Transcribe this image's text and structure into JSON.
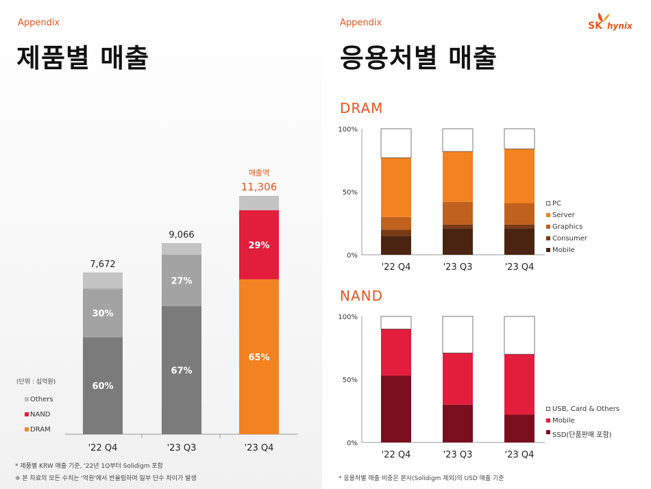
{
  "left": {
    "appendix": "Appendix",
    "title": "제품별 매출",
    "unit_note": "(단위 : 십억원)",
    "legend": [
      {
        "label": "Others",
        "color": "#bdbdbd"
      },
      {
        "label": "NAND",
        "color": "#e31d3c"
      },
      {
        "label": "DRAM",
        "color": "#f58220"
      }
    ],
    "footnotes": [
      "* 제품별 KRW 매출 기준, '22년 1Q부터 Solidigm 포함",
      "※ 본 자료의 모든 수치는 '억원'에서 반올림하여 일부 단수 차이가 발생"
    ],
    "revenue_label": "매출액"
  },
  "right": {
    "appendix": "Appendix",
    "title": "응용처별 매출",
    "dram_title": "DRAM",
    "nand_title": "NAND",
    "footnote": "* 응용처별 매출 비중은 본사(Solidigm 제외)의 USD 매출 기준",
    "dram_legend": [
      {
        "label": "PC",
        "color": "#ffffff"
      },
      {
        "label": "Server",
        "color": "#f58220"
      },
      {
        "label": "Graphics",
        "color": "#c0621e"
      },
      {
        "label": "Consumer",
        "color": "#7a3a14"
      },
      {
        "label": "Mobile",
        "color": "#4a2410"
      }
    ],
    "nand_legend": [
      {
        "label": "USB, Card & Others",
        "color": "#ffffff"
      },
      {
        "label": "Mobile",
        "color": "#e31d3c"
      },
      {
        "label": "SSD(단품판매 포함)",
        "color": "#7a0e1e"
      }
    ]
  },
  "logo": {
    "brand": "SK",
    "sub": "hynix"
  },
  "chart_data": [
    {
      "type": "bar",
      "title": "제품별 매출",
      "categories": [
        "'22 Q4",
        "'23 Q3",
        "'23 Q4"
      ],
      "totals": [
        "7,672",
        "9,066",
        "11,306"
      ],
      "totals_values": [
        7672,
        9066,
        11306
      ],
      "series": [
        {
          "name": "DRAM",
          "values": [
            60,
            67,
            65
          ],
          "labels": [
            "60%",
            "67%",
            "65%"
          ],
          "colors": [
            "#7b7b7b",
            "#7b7b7b",
            "#f58220"
          ]
        },
        {
          "name": "NAND",
          "values": [
            30,
            27,
            29
          ],
          "labels": [
            "30%",
            "27%",
            "29%"
          ],
          "colors": [
            "#a3a3a3",
            "#a3a3a3",
            "#e31d3c"
          ]
        },
        {
          "name": "Others",
          "values": [
            10,
            6,
            6
          ],
          "labels": [
            "",
            "",
            ""
          ],
          "colors": [
            "#c4c4c4",
            "#c4c4c4",
            "#c4c4c4"
          ]
        }
      ]
    },
    {
      "type": "bar",
      "title": "DRAM",
      "categories": [
        "'22 Q4",
        "'23 Q3",
        "'23 Q4"
      ],
      "yticks": [
        "0%",
        "50%",
        "100%"
      ],
      "ylim": [
        0,
        100
      ],
      "series": [
        {
          "name": "Mobile",
          "values": [
            15,
            21,
            21
          ],
          "color": "#4a2410"
        },
        {
          "name": "Consumer",
          "values": [
            5,
            3,
            3
          ],
          "color": "#7a3a14"
        },
        {
          "name": "Graphics",
          "values": [
            10,
            18,
            17
          ],
          "color": "#c0621e"
        },
        {
          "name": "Server",
          "values": [
            47,
            40,
            43
          ],
          "color": "#f58220"
        },
        {
          "name": "PC",
          "values": [
            23,
            18,
            16
          ],
          "color": "#ffffff"
        }
      ]
    },
    {
      "type": "bar",
      "title": "NAND",
      "categories": [
        "'22 Q4",
        "'23 Q3",
        "'23 Q4"
      ],
      "yticks": [
        "0%",
        "50%",
        "100%"
      ],
      "ylim": [
        0,
        100
      ],
      "series": [
        {
          "name": "SSD(단품판매 포함)",
          "values": [
            53,
            30,
            22
          ],
          "color": "#7a0e1e"
        },
        {
          "name": "Mobile",
          "values": [
            37,
            41,
            48
          ],
          "color": "#e31d3c"
        },
        {
          "name": "USB, Card & Others",
          "values": [
            10,
            29,
            30
          ],
          "color": "#ffffff"
        }
      ]
    }
  ]
}
